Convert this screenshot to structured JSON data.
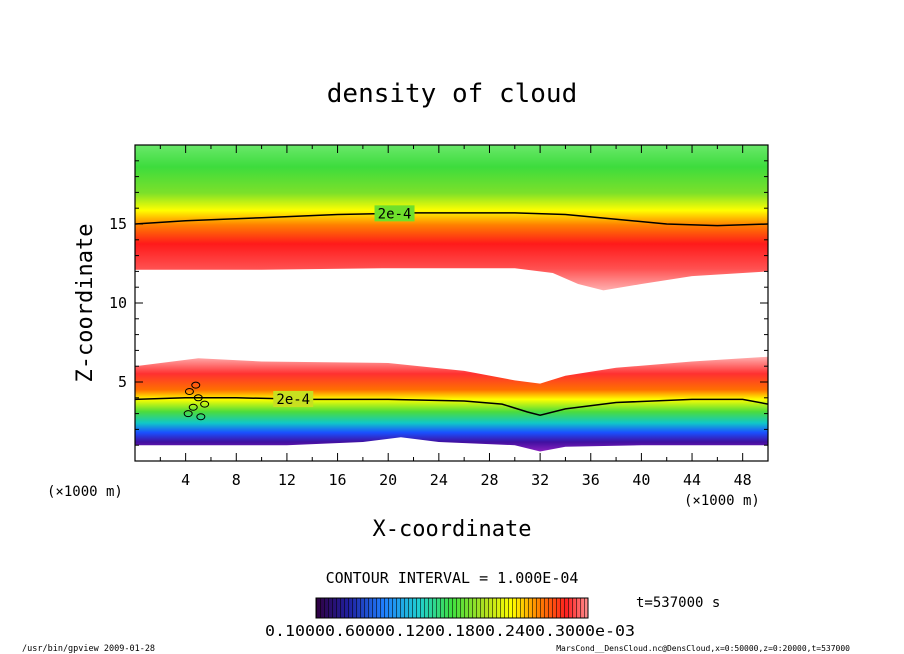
{
  "chart_data": {
    "type": "heatmap",
    "title": "density of cloud",
    "xlabel": "X-coordinate",
    "ylabel": "Z-coordinate",
    "x_unit": "(×1000 m)",
    "z_unit": "(×1000 m)",
    "xlim": [
      0,
      50
    ],
    "ylim": [
      0,
      20
    ],
    "x_ticks": [
      "4",
      "8",
      "12",
      "16",
      "20",
      "24",
      "28",
      "32",
      "36",
      "40",
      "44",
      "48"
    ],
    "y_ticks": [
      "5",
      "10",
      "15"
    ],
    "contour_label": "2e-4",
    "contour_interval": "CONTOUR INTERVAL = 1.000E-04",
    "time_label": "t=537000 s",
    "colorbar_labels": "0.10000.60000.1200.1800.2400.3000e-03",
    "footer_left": "/usr/bin/gpview  2009-01-28",
    "footer_right": "MarsCond__DensCloud.nc@DensCloud,x=0:50000,z=0:20000,t=537000",
    "upper_contour_2e4": [
      [
        0,
        15.0
      ],
      [
        4,
        15.2
      ],
      [
        10,
        15.4
      ],
      [
        16,
        15.6
      ],
      [
        22,
        15.7
      ],
      [
        30,
        15.7
      ],
      [
        34,
        15.6
      ],
      [
        38,
        15.3
      ],
      [
        42,
        15.0
      ],
      [
        46,
        14.9
      ],
      [
        50,
        15.0
      ]
    ],
    "lower_contour_2e4": [
      [
        0,
        3.9
      ],
      [
        4,
        4.0
      ],
      [
        8,
        4.0
      ],
      [
        14,
        3.9
      ],
      [
        20,
        3.9
      ],
      [
        26,
        3.8
      ],
      [
        29,
        3.6
      ],
      [
        31,
        3.1
      ],
      [
        32,
        2.9
      ],
      [
        34,
        3.3
      ],
      [
        38,
        3.7
      ],
      [
        44,
        3.9
      ],
      [
        48,
        3.9
      ],
      [
        50,
        3.6
      ]
    ],
    "upper_cloud_bottom": [
      [
        0,
        12.1
      ],
      [
        10,
        12.1
      ],
      [
        20,
        12.2
      ],
      [
        30,
        12.2
      ],
      [
        33,
        11.9
      ],
      [
        35,
        11.2
      ],
      [
        37,
        10.8
      ],
      [
        40,
        11.2
      ],
      [
        44,
        11.7
      ],
      [
        50,
        12.0
      ]
    ],
    "lower_cloud_top": [
      [
        0,
        6.0
      ],
      [
        5,
        6.5
      ],
      [
        10,
        6.3
      ],
      [
        20,
        6.2
      ],
      [
        26,
        5.7
      ],
      [
        30,
        5.1
      ],
      [
        32,
        4.9
      ],
      [
        34,
        5.4
      ],
      [
        38,
        5.9
      ],
      [
        44,
        6.3
      ],
      [
        50,
        6.6
      ]
    ],
    "lower_cloud_bottom": [
      [
        0,
        1.0
      ],
      [
        6,
        1.0
      ],
      [
        12,
        1.0
      ],
      [
        18,
        1.2
      ],
      [
        21,
        1.5
      ],
      [
        24,
        1.2
      ],
      [
        30,
        1.0
      ],
      [
        32,
        0.6
      ],
      [
        34,
        0.9
      ],
      [
        40,
        1.0
      ],
      [
        50,
        1.0
      ]
    ]
  }
}
